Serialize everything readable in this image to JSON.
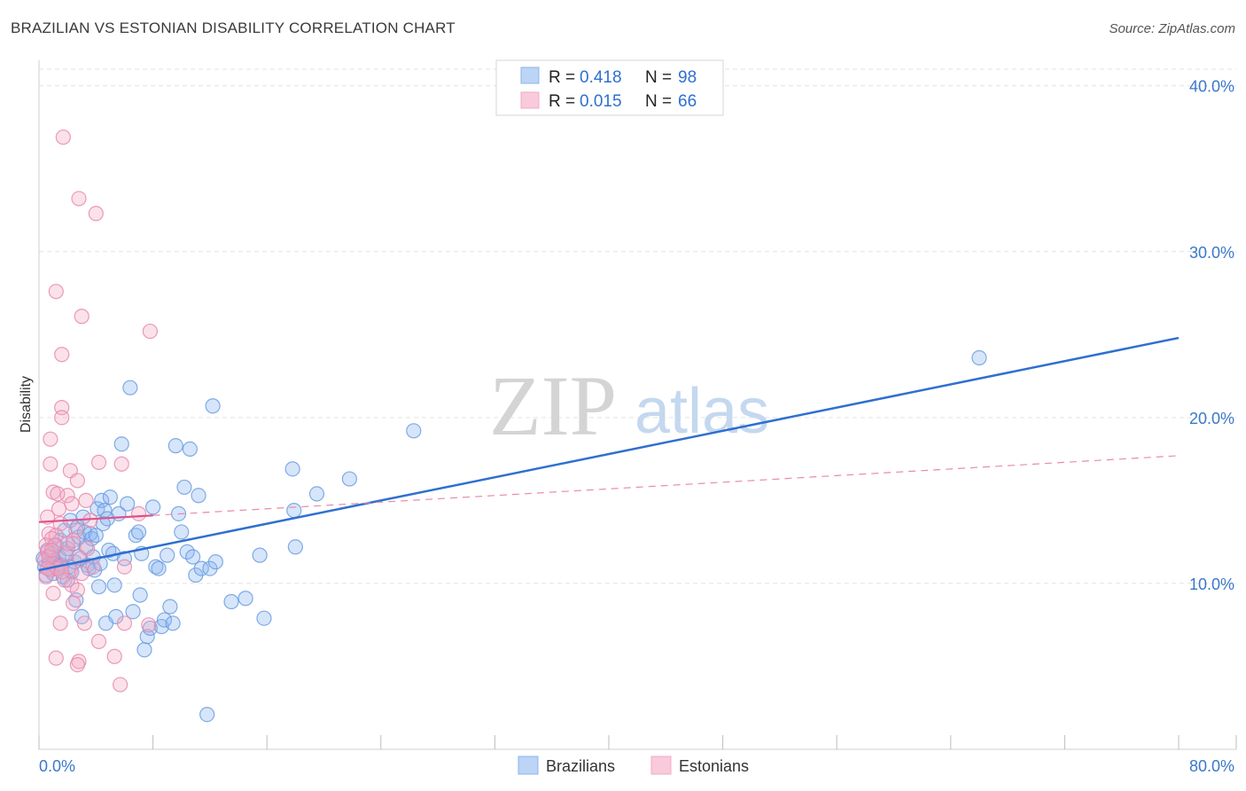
{
  "title": "BRAZILIAN VS ESTONIAN DISABILITY CORRELATION CHART",
  "source": "Source: ZipAtlas.com",
  "watermark": {
    "zip": "ZIP",
    "atlas": "atlas"
  },
  "chart_data": {
    "type": "scatter",
    "title": "BRAZILIAN VS ESTONIAN DISABILITY CORRELATION CHART",
    "xlabel": "",
    "ylabel": "Disability",
    "xlim": [
      0,
      80
    ],
    "ylim": [
      0,
      41
    ],
    "x_tick_labels": [
      "0.0%",
      "80.0%"
    ],
    "y_ticks": [
      10,
      20,
      30,
      40
    ],
    "y_tick_labels": [
      "10.0%",
      "20.0%",
      "30.0%",
      "40.0%"
    ],
    "grid": true,
    "legend_position": "top-center",
    "legend": [
      {
        "name": "Brazilians",
        "r_label": "R =",
        "r_value": "0.418",
        "n_label": "N =",
        "n_value": "98",
        "color": "#8ab4f0",
        "line_color": "#2f6fd0"
      },
      {
        "name": "Estonians",
        "r_label": "R =",
        "r_value": "0.015",
        "n_label": "N =",
        "n_value": "66",
        "color": "#f4a9c4",
        "line_color": "#e0508a"
      }
    ],
    "series": [
      {
        "name": "Brazilians",
        "color": "#8ab4f0",
        "stroke": "#6b9de0",
        "trend": {
          "x0": 0,
          "y0": 10.8,
          "x1": 80,
          "y1": 24.8,
          "style": "solid"
        },
        "points": [
          [
            0.3,
            11.5
          ],
          [
            0.4,
            11.0
          ],
          [
            0.5,
            10.5
          ],
          [
            0.6,
            12.0
          ],
          [
            0.7,
            11.2
          ],
          [
            0.8,
            10.8
          ],
          [
            0.9,
            11.8
          ],
          [
            1.0,
            10.6
          ],
          [
            1.1,
            11.4
          ],
          [
            1.2,
            12.3
          ],
          [
            1.3,
            10.9
          ],
          [
            1.4,
            11.6
          ],
          [
            1.5,
            12.6
          ],
          [
            1.6,
            11.1
          ],
          [
            1.7,
            10.4
          ],
          [
            1.8,
            13.2
          ],
          [
            1.9,
            11.7
          ],
          [
            2.0,
            12.1
          ],
          [
            2.1,
            11.0
          ],
          [
            2.2,
            13.8
          ],
          [
            2.3,
            10.7
          ],
          [
            2.4,
            12.4
          ],
          [
            2.5,
            11.3
          ],
          [
            2.6,
            9.0
          ],
          [
            2.7,
            13.4
          ],
          [
            2.8,
            12.8
          ],
          [
            2.9,
            11.5
          ],
          [
            3.0,
            8.0
          ],
          [
            3.1,
            14.0
          ],
          [
            3.2,
            13.1
          ],
          [
            3.3,
            12.2
          ],
          [
            3.4,
            11.1
          ],
          [
            3.5,
            10.9
          ],
          [
            3.6,
            13.0
          ],
          [
            3.7,
            12.7
          ],
          [
            3.8,
            11.6
          ],
          [
            3.9,
            10.8
          ],
          [
            4.0,
            12.9
          ],
          [
            4.1,
            14.5
          ],
          [
            4.2,
            9.8
          ],
          [
            4.3,
            11.2
          ],
          [
            4.4,
            15.0
          ],
          [
            4.5,
            13.6
          ],
          [
            4.6,
            14.4
          ],
          [
            4.7,
            7.6
          ],
          [
            4.8,
            13.9
          ],
          [
            4.9,
            12.0
          ],
          [
            5.0,
            15.2
          ],
          [
            5.2,
            11.8
          ],
          [
            5.4,
            8.0
          ],
          [
            5.6,
            14.2
          ],
          [
            5.8,
            18.4
          ],
          [
            6.0,
            11.5
          ],
          [
            6.2,
            14.8
          ],
          [
            6.4,
            21.8
          ],
          [
            6.6,
            8.3
          ],
          [
            6.8,
            12.9
          ],
          [
            7.0,
            13.1
          ],
          [
            7.2,
            11.8
          ],
          [
            7.4,
            6.0
          ],
          [
            7.6,
            6.8
          ],
          [
            7.8,
            7.3
          ],
          [
            8.0,
            14.6
          ],
          [
            8.2,
            11.0
          ],
          [
            8.4,
            10.9
          ],
          [
            8.6,
            7.4
          ],
          [
            8.8,
            7.8
          ],
          [
            9.0,
            11.7
          ],
          [
            9.2,
            8.6
          ],
          [
            9.4,
            7.6
          ],
          [
            9.6,
            18.3
          ],
          [
            9.8,
            14.2
          ],
          [
            10.0,
            13.1
          ],
          [
            10.2,
            15.8
          ],
          [
            10.4,
            11.9
          ],
          [
            10.6,
            18.1
          ],
          [
            10.8,
            11.6
          ],
          [
            11.0,
            10.5
          ],
          [
            11.2,
            15.3
          ],
          [
            11.4,
            10.9
          ],
          [
            11.8,
            2.1
          ],
          [
            12.0,
            10.9
          ],
          [
            12.2,
            20.7
          ],
          [
            12.4,
            11.3
          ],
          [
            13.5,
            8.9
          ],
          [
            14.5,
            9.1
          ],
          [
            15.5,
            11.7
          ],
          [
            15.8,
            7.9
          ],
          [
            17.8,
            16.9
          ],
          [
            17.9,
            14.4
          ],
          [
            18.0,
            12.2
          ],
          [
            19.5,
            15.4
          ],
          [
            21.8,
            16.3
          ],
          [
            26.3,
            19.2
          ],
          [
            66.0,
            23.6
          ],
          [
            7.1,
            9.3
          ],
          [
            5.3,
            9.9
          ],
          [
            2.0,
            10.2
          ]
        ]
      },
      {
        "name": "Estonians",
        "color": "#f4a9c4",
        "stroke": "#e88aae",
        "trend": {
          "x0": 0,
          "y0": 13.7,
          "x1": 8,
          "y1": 14.1,
          "x2": 80,
          "y2": 17.7,
          "style": "solid-then-dashed"
        },
        "points": [
          [
            1.7,
            36.9
          ],
          [
            2.8,
            33.2
          ],
          [
            4.0,
            32.3
          ],
          [
            1.2,
            27.6
          ],
          [
            3.0,
            26.1
          ],
          [
            7.8,
            25.2
          ],
          [
            1.6,
            23.8
          ],
          [
            1.6,
            20.6
          ],
          [
            1.6,
            20.0
          ],
          [
            0.8,
            18.7
          ],
          [
            4.2,
            17.3
          ],
          [
            5.8,
            17.2
          ],
          [
            0.8,
            17.2
          ],
          [
            2.2,
            16.8
          ],
          [
            2.7,
            16.2
          ],
          [
            1.0,
            15.5
          ],
          [
            2.0,
            15.3
          ],
          [
            1.3,
            15.4
          ],
          [
            3.3,
            15.0
          ],
          [
            2.3,
            14.8
          ],
          [
            7.0,
            14.2
          ],
          [
            1.4,
            14.5
          ],
          [
            0.6,
            14.0
          ],
          [
            1.5,
            13.6
          ],
          [
            2.6,
            13.2
          ],
          [
            3.6,
            13.8
          ],
          [
            0.7,
            13.0
          ],
          [
            1.2,
            12.9
          ],
          [
            0.9,
            12.7
          ],
          [
            0.5,
            12.3
          ],
          [
            2.4,
            12.6
          ],
          [
            3.4,
            12.1
          ],
          [
            1.1,
            12.3
          ],
          [
            0.6,
            11.9
          ],
          [
            1.9,
            11.8
          ],
          [
            2.8,
            11.6
          ],
          [
            0.4,
            11.4
          ],
          [
            1.0,
            11.2
          ],
          [
            1.5,
            11.0
          ],
          [
            2.2,
            10.8
          ],
          [
            0.8,
            10.8
          ],
          [
            3.8,
            11.0
          ],
          [
            6.0,
            11.0
          ],
          [
            0.5,
            10.4
          ],
          [
            1.8,
            10.2
          ],
          [
            2.3,
            9.9
          ],
          [
            2.7,
            9.6
          ],
          [
            1.0,
            9.4
          ],
          [
            2.4,
            8.8
          ],
          [
            3.2,
            7.6
          ],
          [
            1.5,
            7.6
          ],
          [
            7.7,
            7.5
          ],
          [
            4.2,
            6.5
          ],
          [
            6.0,
            7.6
          ],
          [
            1.2,
            5.5
          ],
          [
            2.8,
            5.3
          ],
          [
            5.3,
            5.6
          ],
          [
            2.7,
            5.1
          ],
          [
            5.7,
            3.9
          ],
          [
            0.7,
            11.6
          ],
          [
            1.3,
            10.9
          ],
          [
            0.9,
            12.0
          ],
          [
            2.0,
            12.4
          ],
          [
            3.0,
            10.6
          ],
          [
            1.6,
            10.7
          ],
          [
            0.6,
            10.9
          ]
        ]
      }
    ]
  }
}
